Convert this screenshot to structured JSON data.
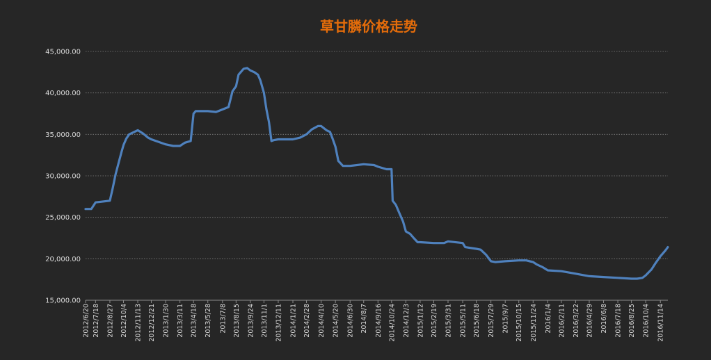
{
  "chart_data": {
    "type": "line",
    "title": "草甘膦价格走势",
    "title_color": "#e46c0a",
    "line_color": "#4f81bd",
    "xlabel": "",
    "ylabel": "",
    "ylim": [
      15000,
      45000
    ],
    "yticks": [
      "15,000.00",
      "20,000.00",
      "25,000.00",
      "30,000.00",
      "35,000.00",
      "40,000.00",
      "45,000.00"
    ],
    "grid": "horizontal dotted",
    "x_tick_labels": [
      "2012/6/20",
      "2012/7/18",
      "2012/8/27",
      "2012/10/4",
      "2012/11/13",
      "2012/12/21",
      "2013/1/30",
      "2013/3/11",
      "2013/4/18",
      "2013/5/28",
      "2013/7/8",
      "2013/8/15",
      "2013/9/24",
      "2013/11/1",
      "2013/12/11",
      "2014/1/21",
      "2014/2/28",
      "2014/4/10",
      "2014/5/20",
      "2014/6/30",
      "2014/8/7",
      "2014/9/16",
      "2014/10/24",
      "2014/12/3",
      "2015/1/12",
      "2015/2/19",
      "2015/3/31",
      "2015/5/11",
      "2015/6/18",
      "2015/7/29",
      "2015/9/7",
      "2015/10/15",
      "2015/11/24",
      "2016/1/4",
      "2016/2/11",
      "2016/3/22",
      "2016/4/29",
      "2016/6/8",
      "2016/7/18",
      "2016/8/25",
      "2016/10/4",
      "2016/11/14"
    ],
    "x": [
      "2012/6/20",
      "2012/7/6",
      "2012/7/18",
      "2012/8/27",
      "2012/9/4",
      "2012/9/12",
      "2012/9/20",
      "2012/9/28",
      "2012/10/4",
      "2012/10/12",
      "2012/10/20",
      "2012/11/13",
      "2012/11/28",
      "2012/12/12",
      "2012/12/21",
      "2013/1/30",
      "2013/2/20",
      "2013/3/11",
      "2013/3/25",
      "2013/4/10",
      "2013/4/18",
      "2013/4/24",
      "2013/5/28",
      "2013/6/20",
      "2013/7/8",
      "2013/7/25",
      "2013/8/5",
      "2013/8/15",
      "2013/8/22",
      "2013/9/5",
      "2013/9/15",
      "2013/9/24",
      "2013/10/5",
      "2013/10/15",
      "2013/10/22",
      "2013/11/1",
      "2013/11/8",
      "2013/11/15",
      "2013/11/22",
      "2013/11/28",
      "2013/12/11",
      "2014/1/21",
      "2014/2/10",
      "2014/2/28",
      "2014/3/15",
      "2014/4/1",
      "2014/4/10",
      "2014/4/25",
      "2014/5/5",
      "2014/5/12",
      "2014/5/20",
      "2014/5/28",
      "2014/6/10",
      "2014/6/30",
      "2014/8/7",
      "2014/9/5",
      "2014/9/16",
      "2014/10/10",
      "2014/10/24",
      "2014/10/27",
      "2014/11/5",
      "2014/11/15",
      "2014/11/25",
      "2014/12/3",
      "2014/12/15",
      "2014/12/25",
      "2015/1/5",
      "2015/1/12",
      "2015/2/19",
      "2015/3/20",
      "2015/3/31",
      "2015/5/11",
      "2015/5/18",
      "2015/6/18",
      "2015/6/30",
      "2015/7/15",
      "2015/7/29",
      "2015/8/10",
      "2015/9/7",
      "2015/10/15",
      "2015/11/5",
      "2015/11/24",
      "2015/12/5",
      "2015/12/20",
      "2016/1/4",
      "2016/2/11",
      "2016/3/22",
      "2016/4/29",
      "2016/6/8",
      "2016/7/18",
      "2016/8/25",
      "2016/9/10",
      "2016/9/25",
      "2016/10/4",
      "2016/10/20",
      "2016/11/1",
      "2016/11/14",
      "2016/11/28",
      "2016/12/5"
    ],
    "y": [
      26000,
      26000,
      26800,
      27000,
      28500,
      30200,
      31500,
      32800,
      33700,
      34500,
      35000,
      35500,
      35100,
      34600,
      34400,
      33800,
      33600,
      33600,
      34000,
      34200,
      37500,
      37800,
      37800,
      37700,
      38000,
      38300,
      40200,
      40800,
      42200,
      42900,
      43000,
      42700,
      42500,
      42200,
      41500,
      40000,
      38000,
      36500,
      34200,
      34300,
      34400,
      34400,
      34600,
      35000,
      35600,
      36000,
      36000,
      35500,
      35300,
      34500,
      33500,
      31800,
      31200,
      31200,
      31400,
      31300,
      31100,
      30800,
      30800,
      27000,
      26500,
      25500,
      24500,
      23300,
      23000,
      22500,
      22000,
      22000,
      21900,
      21900,
      22100,
      21900,
      21400,
      21200,
      21100,
      20500,
      19700,
      19600,
      19700,
      19800,
      19800,
      19600,
      19300,
      19000,
      18600,
      18500,
      18200,
      17900,
      17800,
      17700,
      17600,
      17600,
      17700,
      18000,
      18700,
      19500,
      20300,
      21000,
      21400
    ]
  }
}
